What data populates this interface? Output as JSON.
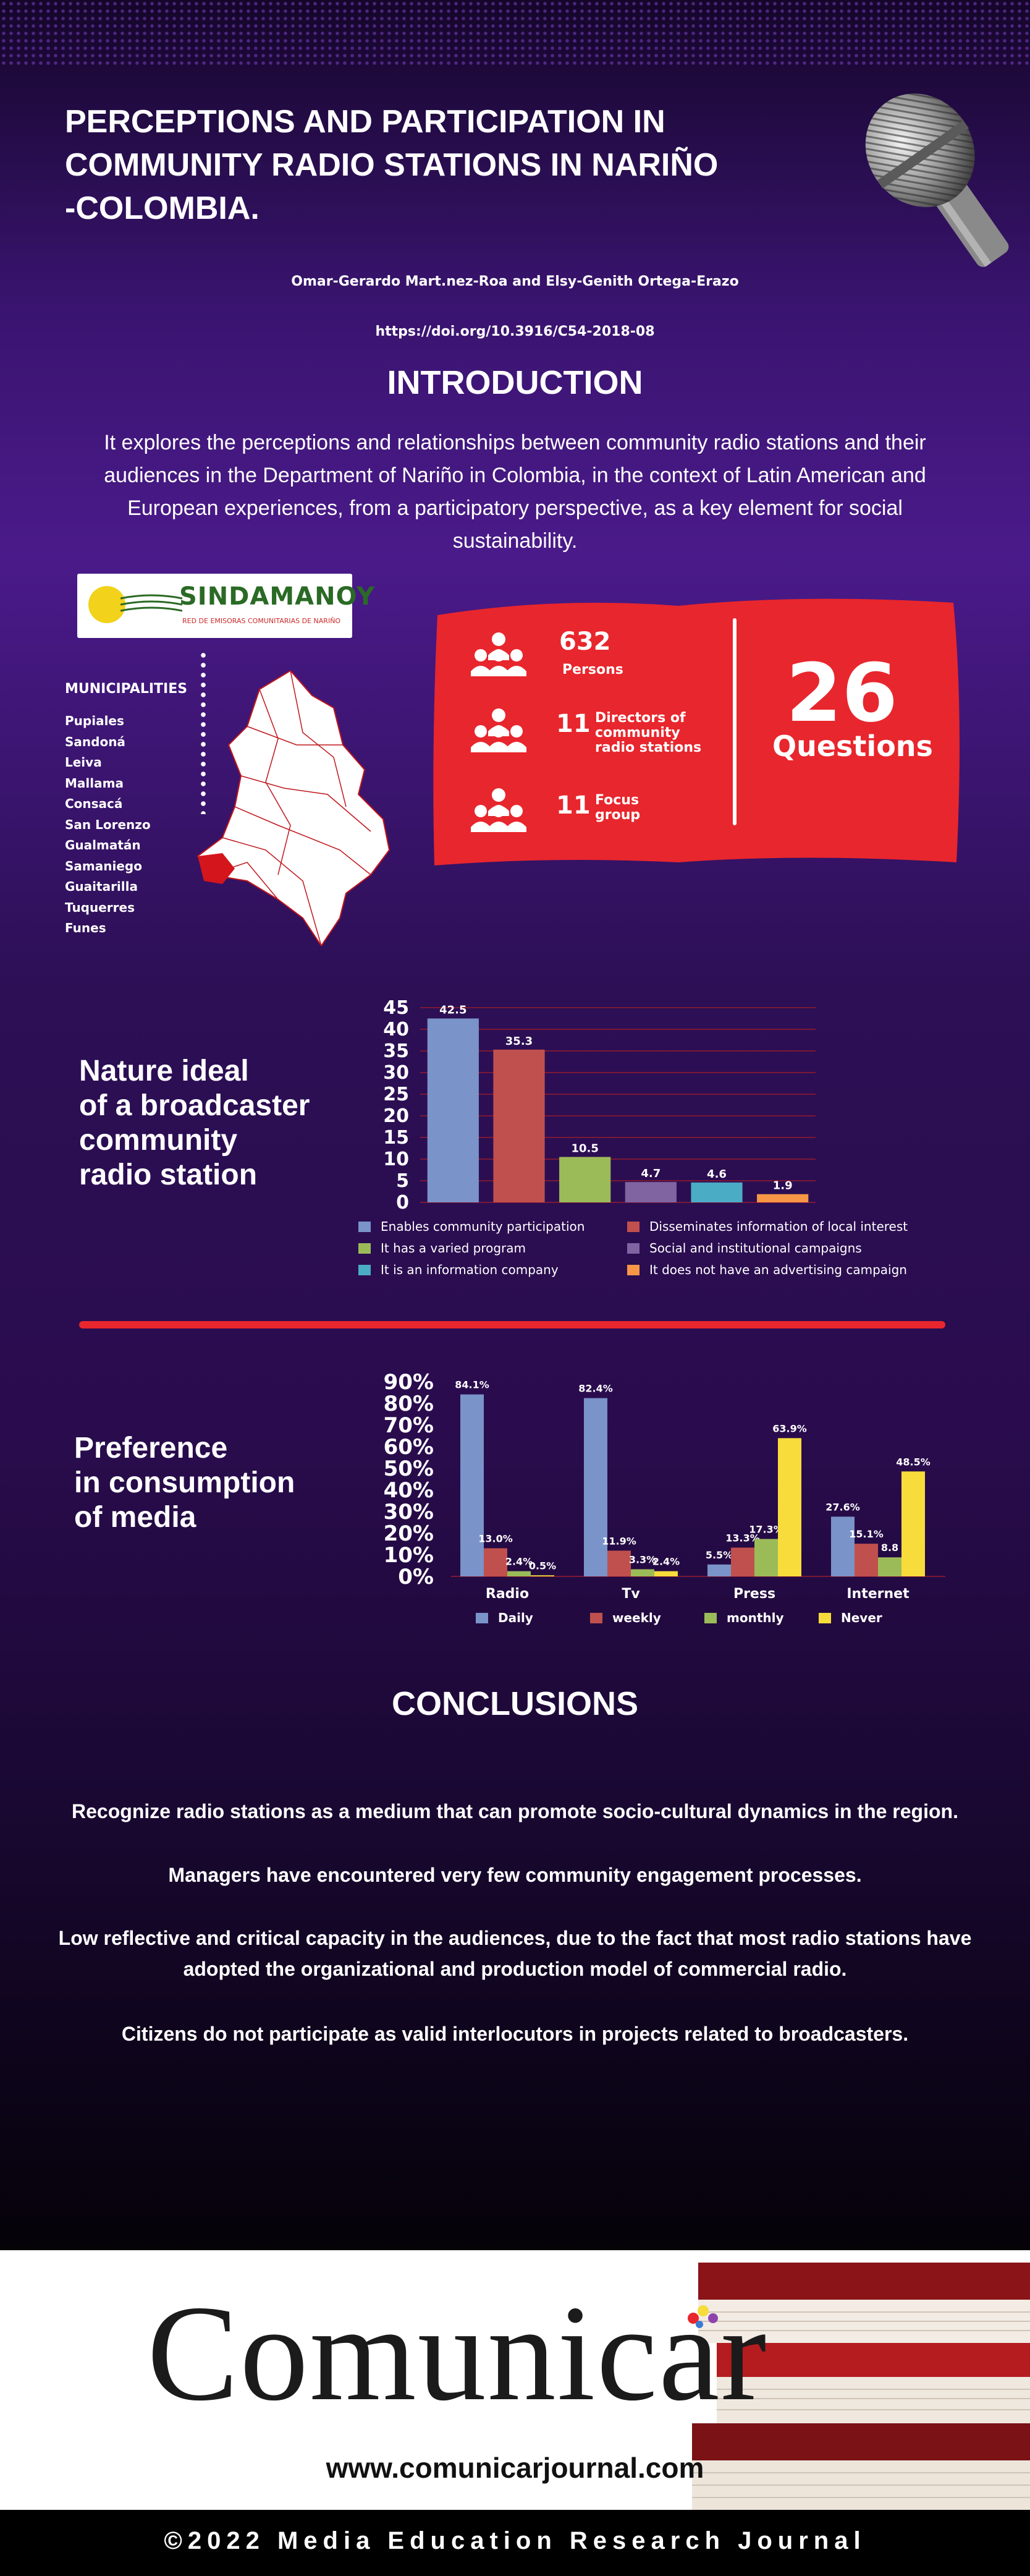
{
  "header": {
    "title": "PERCEPTIONS AND PARTICIPATION IN COMMUNITY RADIO STATIONS IN NARIÑO -COLOMBIA.",
    "title_lines": [
      "PERCEPTIONS AND PARTICIPATION IN",
      "COMMUNITY RADIO STATIONS IN NARIÑO",
      "-COLOMBIA."
    ],
    "authors": "Omar-Gerardo Mart.nez-Roa and Elsy-Genith Ortega-Erazo",
    "doi": "https://doi.org/10.3916/C54-2018-08"
  },
  "introduction": {
    "heading": "INTRODUCTION",
    "text": "It explores the perceptions and relationships between community radio stations and their audiences in the Department of Nariño in Colombia, in the context of Latin American and European experiences, from a participatory perspective, as a key element for social sustainability."
  },
  "logo": {
    "name": "SINDAMANOY",
    "subtitle": "RED DE EMISORAS COMUNITARIAS DE NARIÑO"
  },
  "municipalities": {
    "heading": "MUNICIPALITIES",
    "items": [
      "Pupiales",
      "Sandoná",
      "Leiva",
      "Mallama",
      "Consacá",
      "San Lorenzo",
      "Gualmatán",
      "Samaniego",
      "Guaitarilla",
      "Tuquerres",
      "Funes"
    ]
  },
  "stats": {
    "persons_count": "632",
    "persons_label": "Persons",
    "directors_count": "11",
    "directors_label": [
      "Directors of",
      "community",
      "radio stations"
    ],
    "focus_count": "11",
    "focus_label": [
      "Focus",
      "group"
    ],
    "questions_count": "26",
    "questions_label": "Questions"
  },
  "nature_section": {
    "title_lines": [
      "Nature ideal",
      "of a broadcaster",
      "community",
      "radio station"
    ]
  },
  "preference_section": {
    "title_lines": [
      "Preference",
      "in consumption",
      "of media"
    ]
  },
  "conclusions": {
    "heading": "CONCLUSIONS",
    "items": [
      "Recognize radio stations as a medium that can promote socio-cultural dynamics in the region.",
      "Managers have encountered very few community engagement processes.",
      "Low reflective and critical capacity in the audiences, due to the fact that most radio stations have adopted the organizational and production model of commercial radio.",
      "Citizens do not participate as valid interlocutors in projects related to broadcasters."
    ],
    "item3_lines": [
      "Low reflective and critical capacity in the audiences, due to the fact that most radio stations have",
      "adopted the organizational and production model of commercial radio."
    ]
  },
  "footer": {
    "brand": "Comunicar",
    "website": "www.comunicarjournal.com",
    "copyright": "©2022 Media Education Research Journal"
  },
  "colors": {
    "accent_red": "#e8262d",
    "bar_blue": "#7a93c9",
    "bar_red": "#c0504d",
    "bar_green": "#9bbb59",
    "bar_purple": "#8064a2",
    "bar_cyan": "#4bacc6",
    "bar_orange": "#f79646",
    "bar_yellow": "#f7dc3b"
  },
  "chart_data": [
    {
      "type": "bar",
      "categories": [
        "Enables community participation",
        "Disseminates information of local interest",
        "It has a varied program",
        "Social and institutional campaigns",
        "It is an information company",
        "It does not have an advertising campaign"
      ],
      "values": [
        42.5,
        35.3,
        10.5,
        4.7,
        4.6,
        1.9
      ],
      "value_labels": [
        "42.5",
        "35.3",
        "10.5",
        "4.7",
        "4.6",
        "1.9"
      ],
      "ylim": [
        0,
        45
      ],
      "yticks": [
        0,
        5,
        10,
        15,
        20,
        25,
        30,
        35,
        40,
        45
      ],
      "grid": true,
      "legend": "bottom"
    },
    {
      "type": "bar",
      "categories": [
        "Radio",
        "Tv",
        "Press",
        "Internet"
      ],
      "series": [
        {
          "name": "Daily",
          "values": [
            84.1,
            82.4,
            5.5,
            27.6
          ],
          "labels": [
            "84.1%",
            "82.4%",
            "5.5%",
            "27.6%"
          ]
        },
        {
          "name": "weekly",
          "values": [
            13.0,
            11.9,
            13.3,
            15.1
          ],
          "labels": [
            "13.0%",
            "11.9%",
            "13.3%",
            "15.1%"
          ]
        },
        {
          "name": "monthly",
          "values": [
            2.4,
            3.3,
            17.3,
            8.8
          ],
          "labels": [
            "2.4%",
            "3.3%",
            "17.3%",
            "8.8"
          ]
        },
        {
          "name": "Never",
          "values": [
            0.5,
            2.4,
            63.9,
            48.5
          ],
          "labels": [
            "0.5%",
            "2.4%",
            "63.9%",
            "48.5%"
          ]
        }
      ],
      "ylim": [
        0,
        90
      ],
      "yticks": [
        "0%",
        "10%",
        "20%",
        "30%",
        "40%",
        "50%",
        "60%",
        "70%",
        "80%",
        "90%"
      ],
      "legend": "bottom"
    }
  ]
}
